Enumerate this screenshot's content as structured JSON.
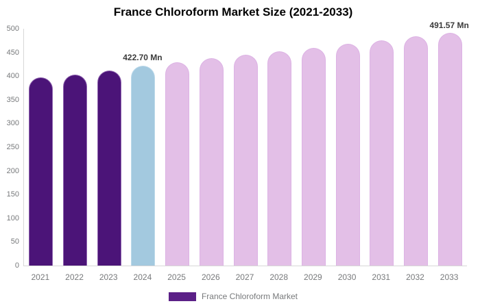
{
  "title": "France Chloroform Market Size (2021-2033)",
  "chart_data": {
    "type": "bar",
    "title": "France Chloroform Market Size (2021-2033)",
    "categories": [
      "2021",
      "2022",
      "2023",
      "2024",
      "2025",
      "2026",
      "2027",
      "2028",
      "2029",
      "2030",
      "2031",
      "2032",
      "2033"
    ],
    "series": [
      {
        "name": "France Chloroform Market",
        "values": [
          397.5,
          403.9,
          411.2,
          422.7,
          429.9,
          437.2,
          444.6,
          452.1,
          459.8,
          467.6,
          475.5,
          483.6,
          491.57
        ]
      }
    ],
    "bar_roles": [
      "historical",
      "historical",
      "historical",
      "highlight",
      "forecast",
      "forecast",
      "forecast",
      "forecast",
      "forecast",
      "forecast",
      "forecast",
      "forecast",
      "forecast"
    ],
    "data_labels": [
      {
        "category": "2024",
        "text": "422.70 Mn"
      },
      {
        "category": "2033",
        "text": "491.57 Mn"
      }
    ],
    "xlabel": "",
    "ylabel": "",
    "ylim": [
      0,
      500
    ],
    "yticks": [
      0,
      50,
      100,
      150,
      200,
      250,
      300,
      350,
      400,
      450,
      500
    ],
    "grid": false,
    "legend_position": "bottom",
    "legend": {
      "label": "France Chloroform Market"
    }
  },
  "colors": {
    "historical_fill": "#4B1478",
    "historical_edge": "#9065B0",
    "highlight_fill": "#A3C9DF",
    "highlight_edge": "#BCD9EA",
    "forecast_fill": "#E3BFE7",
    "forecast_edge": "#DCB2E4",
    "legend_swatch": "#5B2087",
    "axis_line": "#D7D7D7",
    "tick_label": "#77797B",
    "title_text": "#000000",
    "data_label_text": "#3B3B3B"
  }
}
